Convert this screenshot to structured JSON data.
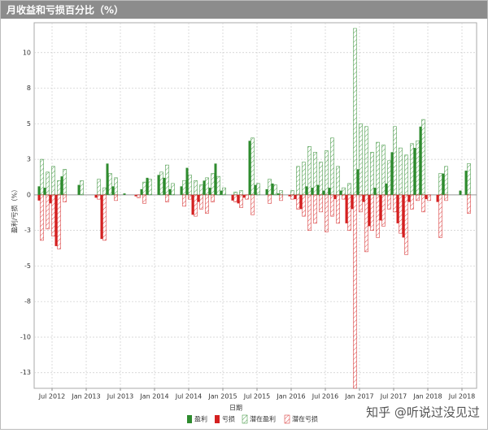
{
  "chart_data": {
    "type": "bar",
    "title": "月收益和亏损百分比（%）",
    "x_label": "日期",
    "y_label": "盈利/亏损（%）",
    "watermark": "知乎 @听说过没见过",
    "categories": [
      null,
      null,
      "Jul 2012",
      null,
      null,
      null,
      null,
      null,
      "Jan 2013",
      null,
      null,
      null,
      null,
      null,
      "Jul 2013",
      null,
      null,
      null,
      null,
      null,
      "Jan 2014",
      null,
      null,
      null,
      null,
      null,
      "Jul 2014",
      null,
      null,
      null,
      null,
      null,
      "Jan 2015",
      null,
      null,
      null,
      null,
      null,
      "Jul 2015",
      null,
      null,
      null,
      null,
      null,
      "Jan 2016",
      null,
      null,
      null,
      null,
      null,
      "Jul 2016",
      null,
      null,
      null,
      null,
      null,
      "Jan 2017",
      null,
      null,
      null,
      null,
      null,
      "Jul 2017",
      null,
      null,
      null,
      null,
      null,
      "Jan 2018",
      null,
      null,
      null,
      null,
      null,
      "Jul 2018",
      null
    ],
    "series": [
      {
        "name": "盈利",
        "color": "#2e8b2e",
        "style": "solid",
        "values": [
          0.6,
          0.5,
          null,
          null,
          1.3,
          null,
          null,
          0.7,
          null,
          null,
          null,
          null,
          2.2,
          0.6,
          null,
          0.1,
          null,
          null,
          0.4,
          1.2,
          null,
          1.4,
          1.2,
          0.4,
          null,
          0.6,
          1.9,
          null,
          null,
          1.0,
          0.5,
          2.2,
          0.3,
          null,
          null,
          null,
          null,
          3.8,
          0.7,
          null,
          0.4,
          0.8,
          0.1,
          null,
          null,
          null,
          null,
          0.6,
          0.5,
          0.7,
          0.3,
          0.5,
          null,
          0.3,
          null,
          null,
          1.8,
          null,
          null,
          0.5,
          null,
          0.8,
          3.0,
          null,
          null,
          null,
          3.3,
          4.8,
          null,
          null,
          null,
          1.5,
          null,
          null,
          0.3,
          1.7
        ]
      },
      {
        "name": "亏损",
        "color": "#d42020",
        "style": "solid",
        "values": [
          -0.4,
          null,
          -0.6,
          -3.6,
          null,
          null,
          null,
          null,
          null,
          null,
          -0.2,
          -3.1,
          null,
          null,
          null,
          null,
          null,
          -0.1,
          null,
          null,
          null,
          null,
          null,
          null,
          null,
          null,
          null,
          -1.4,
          -0.5,
          null,
          null,
          null,
          null,
          null,
          -0.4,
          -0.6,
          -0.2,
          null,
          null,
          null,
          null,
          null,
          null,
          null,
          -0.1,
          -0.3,
          -1.0,
          null,
          null,
          null,
          null,
          null,
          -0.3,
          null,
          -2.0,
          -1.0,
          null,
          -0.5,
          -2.2,
          null,
          -1.8,
          null,
          null,
          -2.0,
          -3.0,
          -0.5,
          null,
          null,
          -0.3,
          null,
          -0.5,
          null,
          null,
          null,
          null,
          null
        ]
      },
      {
        "name": "潜在盈利",
        "color": "#2e8b2e",
        "style": "hatched",
        "values": [
          2.5,
          1.6,
          2.0,
          1.0,
          1.8,
          null,
          null,
          1.0,
          null,
          null,
          1.1,
          0.5,
          1.5,
          1.2,
          null,
          null,
          null,
          null,
          0.9,
          1.1,
          null,
          1.6,
          2.1,
          0.8,
          null,
          1.0,
          1.4,
          1.0,
          0.7,
          1.2,
          1.5,
          1.3,
          0.5,
          null,
          0.2,
          0.3,
          null,
          4.0,
          0.8,
          null,
          1.1,
          0.7,
          0.3,
          null,
          0.3,
          2.0,
          2.3,
          3.4,
          3.0,
          2.3,
          3.1,
          4.0,
          2.0,
          0.5,
          0.8,
          11.7,
          5.0,
          4.8,
          3.0,
          3.7,
          3.5,
          2.4,
          4.8,
          3.3,
          2.8,
          3.6,
          3.8,
          5.3,
          null,
          null,
          1.5,
          2.0,
          null,
          null,
          null,
          2.2
        ]
      },
      {
        "name": "潜在亏损",
        "color": "#d42020",
        "style": "hatched",
        "values": [
          -3.2,
          -2.4,
          -2.9,
          -3.8,
          -0.5,
          null,
          null,
          null,
          null,
          null,
          -0.3,
          -3.2,
          null,
          -0.4,
          null,
          null,
          null,
          -0.2,
          -0.6,
          null,
          null,
          null,
          -0.5,
          null,
          null,
          -0.8,
          -0.3,
          -1.5,
          -1.0,
          -1.3,
          -0.5,
          null,
          null,
          null,
          -0.5,
          -0.9,
          -0.3,
          -1.4,
          null,
          null,
          -0.6,
          null,
          -0.4,
          null,
          -0.3,
          -1.0,
          -1.5,
          -2.5,
          -2.0,
          -1.2,
          -2.6,
          -1.5,
          -2.0,
          -0.3,
          -2.5,
          -13.6,
          -1.2,
          -4.0,
          -2.5,
          -3.0,
          -2.2,
          -1.0,
          -1.2,
          -2.7,
          -4.2,
          -1.0,
          -0.4,
          -1.2,
          -0.4,
          null,
          -3.0,
          -0.4,
          null,
          null,
          null,
          -1.3
        ]
      }
    ],
    "ylim": [
      -13.6,
      12.1
    ],
    "yticks": [
      {
        "value": -12.5,
        "label": "-13"
      },
      -10,
      {
        "value": -7.5,
        "label": "-8"
      },
      -5,
      {
        "value": -2.5,
        "label": "-3"
      },
      0,
      {
        "value": 2.5,
        "label": "3"
      },
      5,
      {
        "value": 7.5,
        "label": "8"
      },
      10
    ],
    "grid": true
  }
}
